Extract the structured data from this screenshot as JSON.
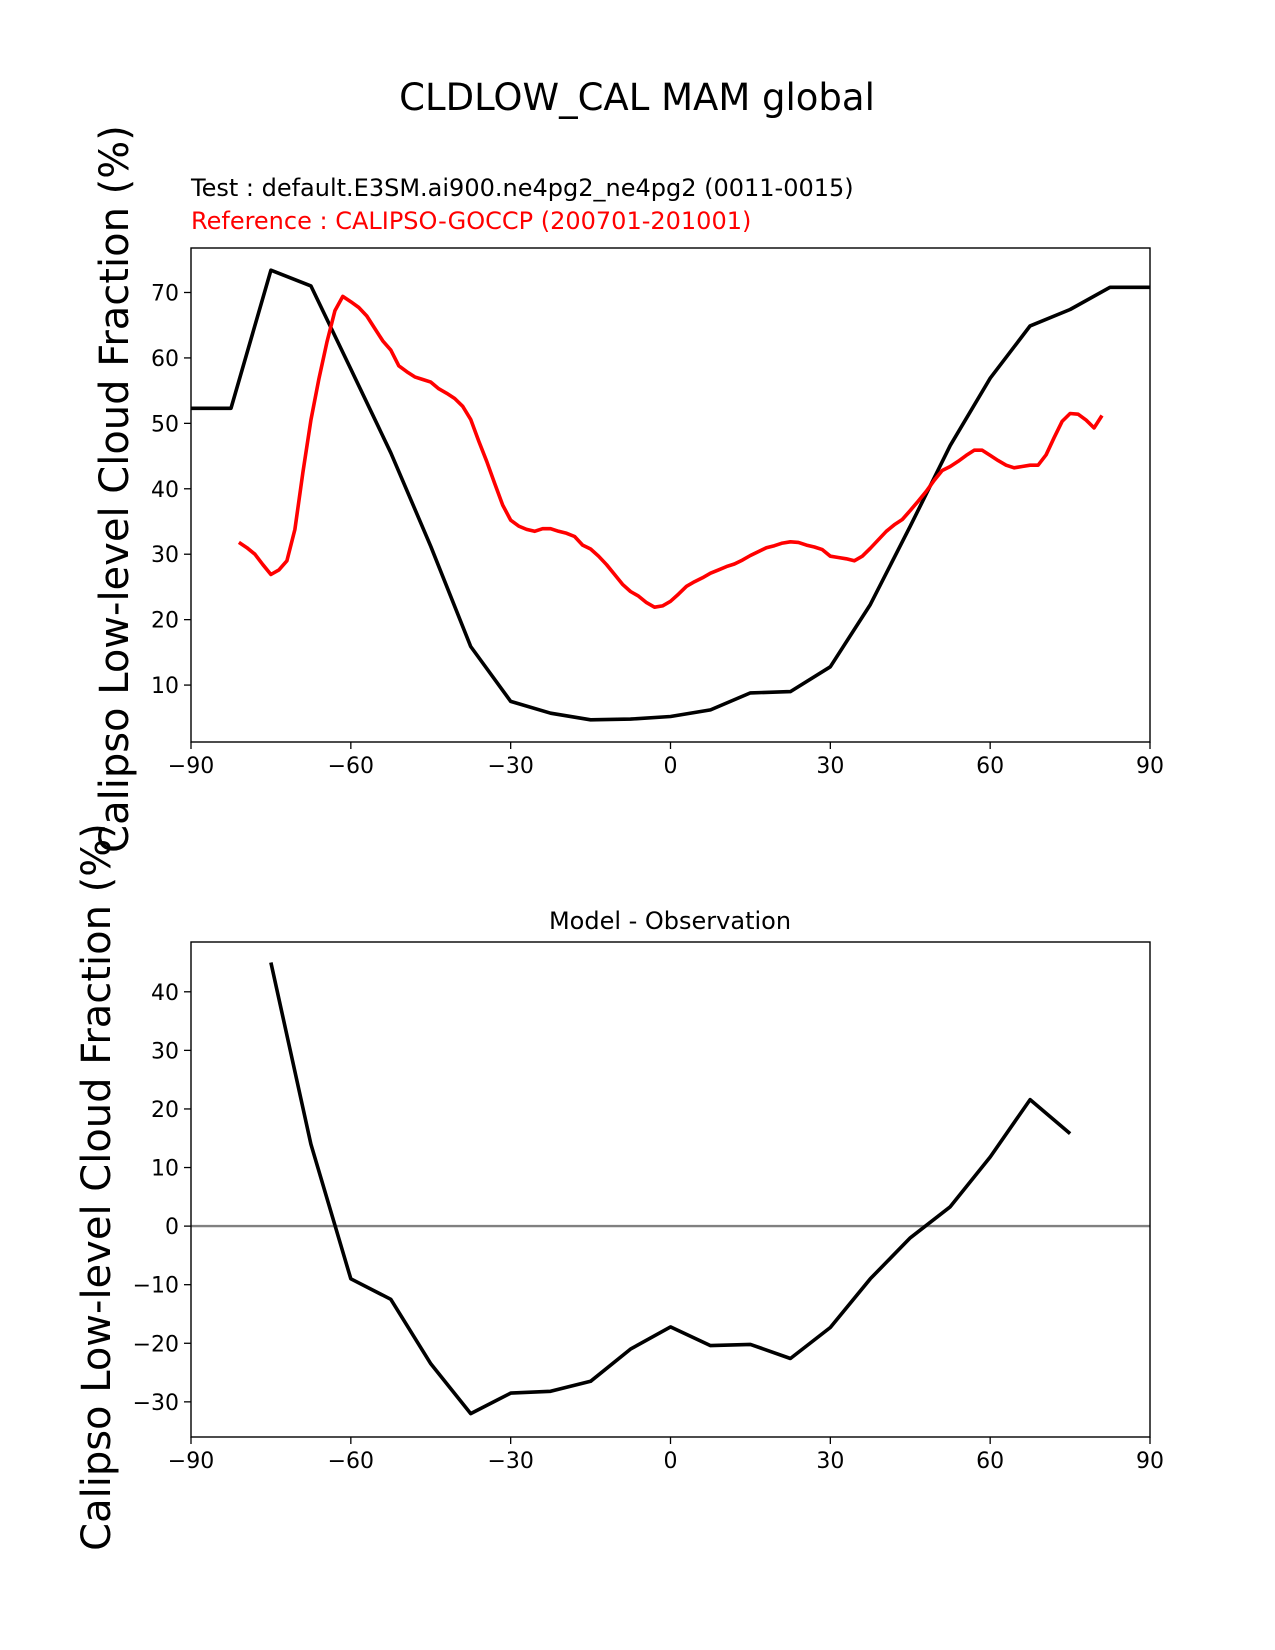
{
  "figure": {
    "title": "CLDLOW_CAL MAM global"
  },
  "chart_data": [
    {
      "type": "line",
      "title_test": "Test : default.E3SM.ai900.ne4pg2_ne4pg2 (0011-0015)",
      "title_ref": "Reference : CALIPSO-GOCCP (200701-201001)",
      "xlabel": "",
      "ylabel": "Calipso Low-level Cloud Fraction (%)",
      "xlim": [
        -90,
        90
      ],
      "ylim": [
        1.3,
        76.8
      ],
      "xticks": [
        -90,
        -60,
        -30,
        0,
        30,
        60,
        90
      ],
      "yticks": [
        10,
        20,
        30,
        40,
        50,
        60,
        70
      ],
      "grid": false,
      "series": [
        {
          "color": "#000000",
          "x": [
            -90,
            -82.5,
            -75,
            -67.5,
            -60,
            -52.5,
            -45,
            -37.5,
            -30,
            -22.5,
            -15,
            -7.5,
            0,
            7.5,
            15,
            22.5,
            30,
            37.5,
            45,
            52.5,
            60,
            67.5,
            75,
            82.5,
            90
          ],
          "y": [
            52.3,
            52.3,
            73.4,
            71.0,
            58.3,
            45.5,
            31.2,
            15.9,
            7.5,
            5.7,
            4.7,
            4.8,
            5.2,
            6.2,
            8.8,
            9.0,
            12.8,
            22.3,
            34.3,
            46.6,
            56.9,
            64.9,
            67.4,
            70.8,
            70.8
          ]
        },
        {
          "color": "#ff0000",
          "x": [
            -81,
            -79.5,
            -78,
            -76.5,
            -75,
            -73.5,
            -72,
            -70.5,
            -69,
            -67.5,
            -66,
            -64.5,
            -63,
            -61.5,
            -60,
            -58.5,
            -57,
            -55.5,
            -54,
            -52.5,
            -51,
            -49.5,
            -48,
            -46.5,
            -45,
            -43.5,
            -42,
            -40.5,
            -39,
            -37.5,
            -36,
            -34.5,
            -33,
            -31.5,
            -30,
            -28.5,
            -27,
            -25.5,
            -24,
            -22.5,
            -21,
            -19.5,
            -18,
            -16.5,
            -15,
            -13.5,
            -12,
            -10.5,
            -9,
            -7.5,
            -6,
            -4.5,
            -3,
            -1.5,
            0,
            1.5,
            3,
            4.5,
            6,
            7.5,
            9,
            10.5,
            12,
            13.5,
            15,
            16.5,
            18,
            19.5,
            21,
            22.5,
            24,
            25.5,
            27,
            28.5,
            30,
            31.5,
            33,
            34.5,
            36,
            37.5,
            39,
            40.5,
            42,
            43.5,
            45,
            46.5,
            48,
            49.5,
            51,
            52.5,
            54,
            55.5,
            57,
            58.5,
            60,
            61.5,
            63,
            64.5,
            66,
            67.5,
            69,
            70.5,
            72,
            73.5,
            75,
            76.5,
            78,
            79.5,
            81
          ],
          "y": [
            31.8,
            31.0,
            30.0,
            28.4,
            26.9,
            27.6,
            29.0,
            33.8,
            42.5,
            50.5,
            56.8,
            62.4,
            67.2,
            69.4,
            68.6,
            67.7,
            66.4,
            64.5,
            62.6,
            61.2,
            58.8,
            57.9,
            57.1,
            56.7,
            56.3,
            55.3,
            54.6,
            53.8,
            52.6,
            50.6,
            47.3,
            44.2,
            40.8,
            37.5,
            35.2,
            34.3,
            33.8,
            33.5,
            33.9,
            33.9,
            33.5,
            33.2,
            32.7,
            31.4,
            30.8,
            29.7,
            28.4,
            26.9,
            25.4,
            24.3,
            23.6,
            22.6,
            21.9,
            22.1,
            22.8,
            23.9,
            25.1,
            25.8,
            26.4,
            27.1,
            27.6,
            28.1,
            28.5,
            29.1,
            29.8,
            30.4,
            31.0,
            31.3,
            31.7,
            31.9,
            31.8,
            31.4,
            31.1,
            30.7,
            29.7,
            29.5,
            29.3,
            29.0,
            29.7,
            30.9,
            32.2,
            33.5,
            34.5,
            35.3,
            36.7,
            38.1,
            39.6,
            41.3,
            42.8,
            43.4,
            44.2,
            45.1,
            45.9,
            45.9,
            45.1,
            44.3,
            43.6,
            43.2,
            43.4,
            43.6,
            43.6,
            45.2,
            47.8,
            50.3,
            51.5,
            51.4,
            50.5,
            49.3,
            51.2
          ]
        }
      ]
    },
    {
      "type": "line",
      "title": "Model - Observation",
      "xlabel": "",
      "ylabel": "Calipso Low-level Cloud Fraction (%)",
      "xlim": [
        -90,
        90
      ],
      "ylim": [
        -36,
        48.5
      ],
      "xticks": [
        -90,
        -60,
        -30,
        0,
        30,
        60,
        90
      ],
      "yticks": [
        -30,
        -20,
        -10,
        0,
        10,
        20,
        30,
        40
      ],
      "grid": false,
      "zero_line_color": "#808080",
      "series": [
        {
          "color": "#000000",
          "x": [
            -75,
            -67.5,
            -60,
            -52.5,
            -45,
            -37.5,
            -30,
            -22.5,
            -15,
            -7.5,
            0,
            7.5,
            15,
            22.5,
            30,
            37.5,
            45,
            52.5,
            60,
            67.5,
            75
          ],
          "y": [
            45,
            14,
            -9,
            -12.5,
            -23.5,
            -32,
            -28.5,
            -28.2,
            -26.5,
            -21,
            -17.2,
            -20.4,
            -20.2,
            -22.6,
            -17.3,
            -9,
            -2,
            3.3,
            11.8,
            21.6,
            15.8
          ]
        }
      ]
    }
  ]
}
